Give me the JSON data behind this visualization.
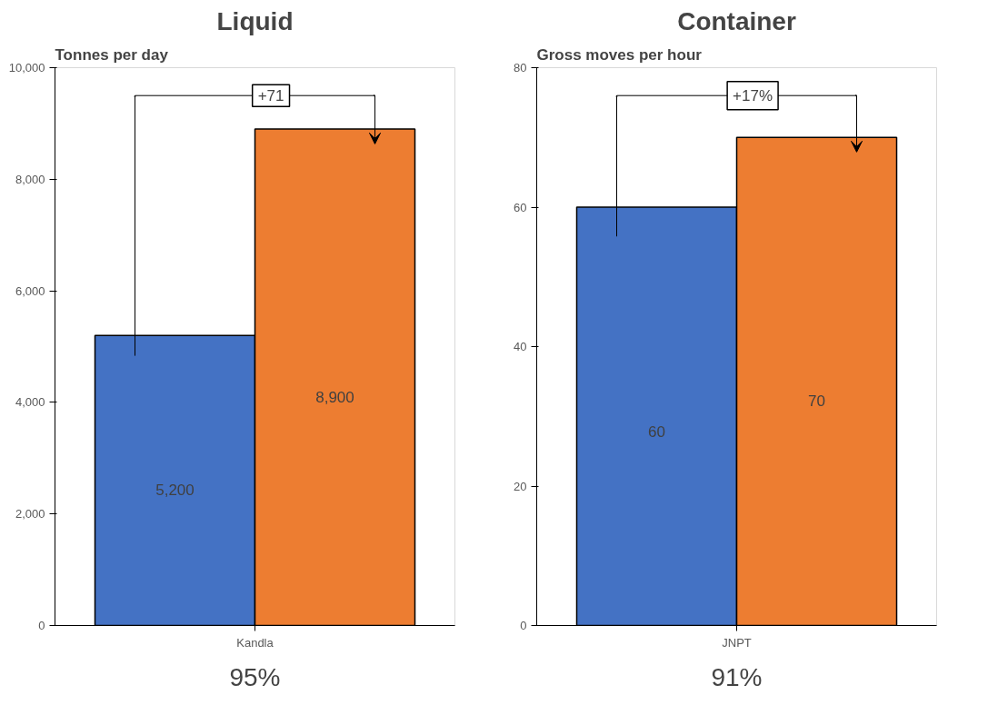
{
  "chart_data": [
    {
      "type": "bar",
      "title": "Liquid",
      "ylabel": "Tonnes per day",
      "categories": [
        "Kandla"
      ],
      "series": [
        {
          "color": "#4472c4",
          "values": [
            5200
          ],
          "value_labels": [
            "5,200"
          ]
        },
        {
          "color": "#ed7d31",
          "values": [
            8900
          ],
          "value_labels": [
            "8,900"
          ]
        }
      ],
      "ylim": [
        0,
        10000
      ],
      "yticks": [
        0,
        {
          "value": 2000,
          "label": "2,000"
        },
        {
          "value": 4000,
          "label": "4,000"
        },
        {
          "value": 6000,
          "label": "6,000"
        },
        {
          "value": 8000,
          "label": "8,000"
        },
        {
          "value": 10000,
          "label": "10,000"
        }
      ],
      "grid": false,
      "annotations": [
        "+71",
        "95%"
      ]
    },
    {
      "type": "bar",
      "title": "Container",
      "ylabel": "Gross moves per hour",
      "categories": [
        "JNPT"
      ],
      "series": [
        {
          "color": "#4472c4",
          "values": [
            60
          ]
        },
        {
          "color": "#ed7d31",
          "values": [
            70
          ]
        }
      ],
      "ylim": [
        0,
        80
      ],
      "yticks": [
        0,
        20,
        40,
        60,
        80
      ],
      "data_labels": true,
      "grid": false,
      "annotations": [
        "+17%",
        "91%"
      ]
    }
  ]
}
